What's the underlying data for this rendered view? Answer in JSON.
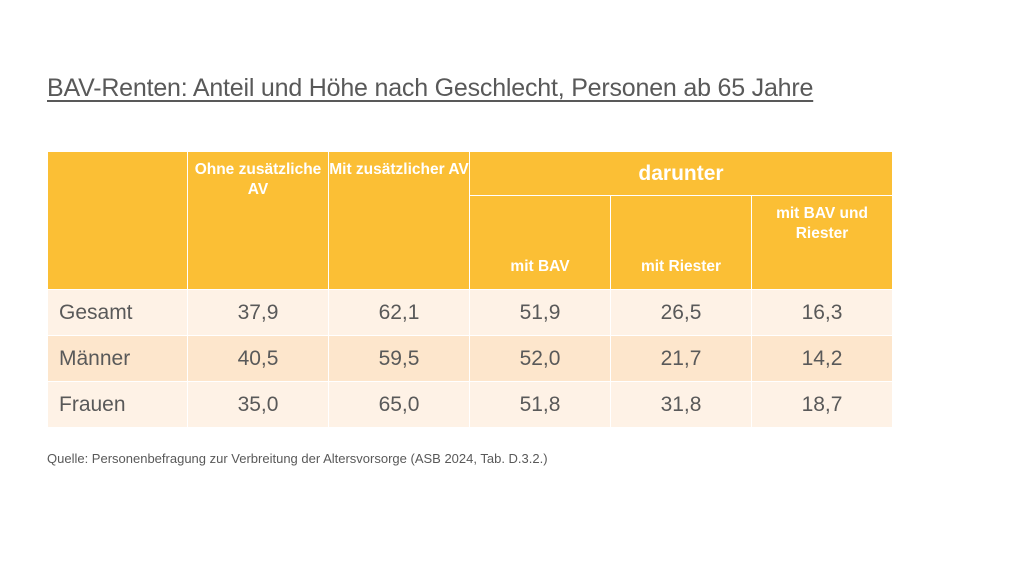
{
  "title": "BAV-Renten: Anteil und Höhe nach Geschlecht, Personen ab 65 Jahre",
  "table": {
    "header": {
      "empty": "",
      "ohne_av": "Ohne zusätzliche AV",
      "mit_av": "Mit zusätzlicher AV",
      "group": "darunter",
      "sub": [
        "mit BAV",
        "mit Riester",
        "mit BAV und Riester"
      ]
    },
    "rows": [
      {
        "label": "Gesamt",
        "values": [
          "37,9",
          "62,1",
          "51,9",
          "26,5",
          "16,3"
        ]
      },
      {
        "label": "Männer",
        "values": [
          "40,5",
          "59,5",
          "52,0",
          "21,7",
          "14,2"
        ]
      },
      {
        "label": "Frauen",
        "values": [
          "35,0",
          "65,0",
          "51,8",
          "31,8",
          "18,7"
        ]
      }
    ]
  },
  "source": "Quelle: Personenbefragung zur Verbreitung der Altersvorsorge (ASB 2024, Tab. D.3.2.)",
  "colors": {
    "header": "#fbbf35",
    "row_light": "#fef2e6",
    "row_dark": "#fde6cc",
    "text": "#595959"
  }
}
